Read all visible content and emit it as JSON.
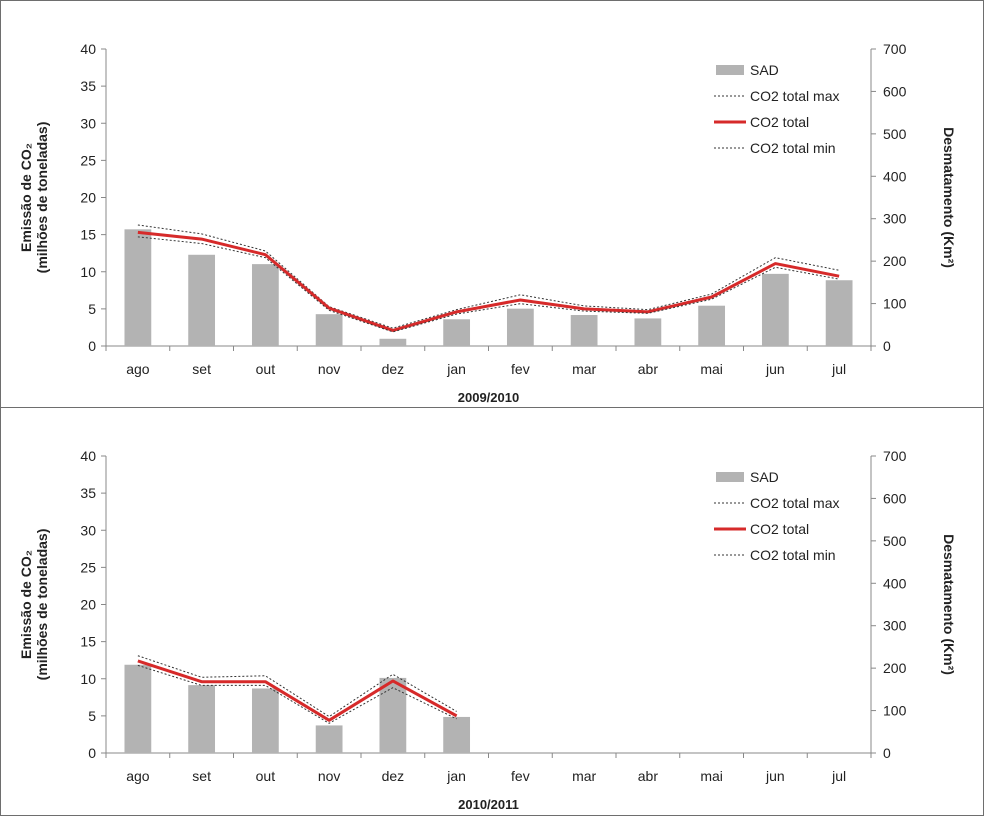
{
  "chart_data": [
    {
      "type": "bar",
      "xlabel": "2009/2010",
      "ylabel_left": "Emissão de CO₂",
      "ylabel_left_sub": "(milhões de toneladas)",
      "ylabel_right": "Desmatamento (Km²)",
      "categories": [
        "ago",
        "set",
        "out",
        "nov",
        "dez",
        "jan",
        "fev",
        "mar",
        "abr",
        "mai",
        "jun",
        "jul"
      ],
      "ylim_left": [
        0,
        40
      ],
      "ylim_right": [
        0,
        700
      ],
      "yticks_left": [
        0,
        5,
        10,
        15,
        20,
        25,
        30,
        35,
        40
      ],
      "yticks_right": [
        0,
        100,
        200,
        300,
        400,
        500,
        600,
        700
      ],
      "series": [
        {
          "name": "SAD",
          "axis": "right",
          "kind": "bar",
          "color": "#b3b3b3",
          "values": [
            275,
            215,
            193,
            75,
            17,
            63,
            88,
            73,
            65,
            95,
            170,
            155
          ]
        },
        {
          "name": "CO2 total max",
          "axis": "left",
          "kind": "dotted",
          "color": "#333333",
          "values": [
            16.3,
            15.1,
            12.8,
            5.3,
            2.4,
            4.9,
            6.9,
            5.4,
            4.9,
            7.0,
            11.9,
            10.2
          ]
        },
        {
          "name": "CO2 total",
          "axis": "left",
          "kind": "line",
          "color": "#d62a2a",
          "values": [
            15.3,
            14.4,
            12.3,
            5.1,
            2.1,
            4.6,
            6.2,
            5.0,
            4.6,
            6.6,
            11.1,
            9.4
          ]
        },
        {
          "name": "CO2 total min",
          "axis": "left",
          "kind": "dotted",
          "color": "#333333",
          "values": [
            14.7,
            13.8,
            11.9,
            4.8,
            1.9,
            4.3,
            5.7,
            4.7,
            4.4,
            6.3,
            10.6,
            9.0
          ]
        }
      ],
      "legend_position": "top-right"
    },
    {
      "type": "bar",
      "xlabel": "2010/2011",
      "ylabel_left": "Emissão de CO₂",
      "ylabel_left_sub": "(milhões de toneladas)",
      "ylabel_right": "Desmatamento (Km²)",
      "categories": [
        "ago",
        "set",
        "out",
        "nov",
        "dez",
        "jan",
        "fev",
        "mar",
        "abr",
        "mai",
        "jun",
        "jul"
      ],
      "ylim_left": [
        0,
        40
      ],
      "ylim_right": [
        0,
        700
      ],
      "yticks_left": [
        0,
        5,
        10,
        15,
        20,
        25,
        30,
        35,
        40
      ],
      "yticks_right": [
        0,
        100,
        200,
        300,
        400,
        500,
        600,
        700
      ],
      "series": [
        {
          "name": "SAD",
          "axis": "right",
          "kind": "bar",
          "color": "#b3b3b3",
          "values": [
            208,
            160,
            152,
            65,
            177,
            85,
            null,
            null,
            null,
            null,
            null,
            null
          ]
        },
        {
          "name": "CO2 total max",
          "axis": "left",
          "kind": "dotted",
          "color": "#333333",
          "values": [
            13.1,
            10.2,
            10.4,
            4.9,
            10.6,
            5.6,
            null,
            null,
            null,
            null,
            null,
            null
          ]
        },
        {
          "name": "CO2 total",
          "axis": "left",
          "kind": "line",
          "color": "#d62a2a",
          "values": [
            12.4,
            9.6,
            9.6,
            4.4,
            9.7,
            5.0,
            null,
            null,
            null,
            null,
            null,
            null
          ]
        },
        {
          "name": "CO2 total min",
          "axis": "left",
          "kind": "dotted",
          "color": "#333333",
          "values": [
            11.8,
            9.1,
            9.1,
            4.0,
            8.8,
            4.6,
            null,
            null,
            null,
            null,
            null,
            null
          ]
        }
      ],
      "legend_position": "top-right"
    }
  ]
}
